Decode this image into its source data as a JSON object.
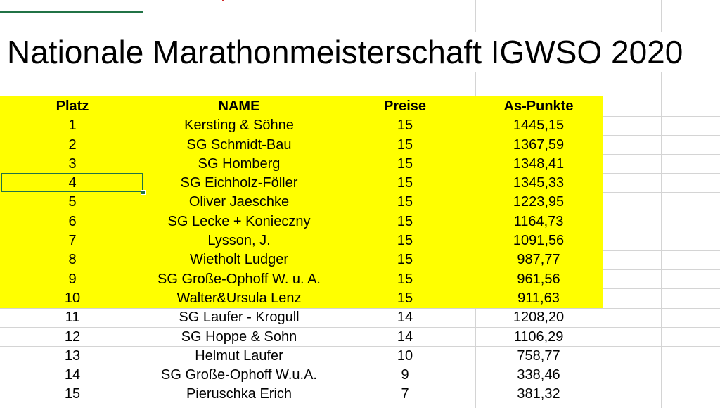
{
  "sheet": {
    "title": "Nationale Marathonmeisterschaft IGWSO 2020",
    "headers": {
      "platz": "Platz",
      "name": "NAME",
      "preise": "Preise",
      "punkte": "As-Punkte"
    },
    "rows": [
      {
        "platz": "1",
        "name": "Kersting & Söhne",
        "preise": "15",
        "punkte": "1445,15"
      },
      {
        "platz": "2",
        "name": "SG Schmidt-Bau",
        "preise": "15",
        "punkte": "1367,59"
      },
      {
        "platz": "3",
        "name": "SG Homberg",
        "preise": "15",
        "punkte": "1348,41"
      },
      {
        "platz": "4",
        "name": "SG Eichholz-Föller",
        "preise": "15",
        "punkte": "1345,33"
      },
      {
        "platz": "5",
        "name": "Oliver Jaeschke",
        "preise": "15",
        "punkte": "1223,95"
      },
      {
        "platz": "6",
        "name": "SG Lecke + Konieczny",
        "preise": "15",
        "punkte": "1164,73"
      },
      {
        "platz": "7",
        "name": "Lysson, J.",
        "preise": "15",
        "punkte": "1091,56"
      },
      {
        "platz": "8",
        "name": "Wietholt Ludger",
        "preise": "15",
        "punkte": "987,77"
      },
      {
        "platz": "9",
        "name": "SG Große-Ophoff W. u. A.",
        "preise": "15",
        "punkte": "961,56"
      },
      {
        "platz": "10",
        "name": "Walter&Ursula Lenz",
        "preise": "15",
        "punkte": "911,63"
      },
      {
        "platz": "11",
        "name": "SG Laufer - Krogull",
        "preise": "14",
        "punkte": "1208,20"
      },
      {
        "platz": "12",
        "name": "SG Hoppe & Sohn",
        "preise": "14",
        "punkte": "1106,29"
      },
      {
        "platz": "13",
        "name": "Helmut Laufer",
        "preise": "10",
        "punkte": "758,77"
      },
      {
        "platz": "14",
        "name": "SG Große-Ophoff W.u.A.",
        "preise": "9",
        "punkte": "338,46"
      },
      {
        "platz": "15",
        "name": "Pieruschka Erich",
        "preise": "7",
        "punkte": "381,32"
      }
    ]
  },
  "colors": {
    "highlight": "#ffff00",
    "selection": "#217346",
    "gridline": "#d4d4d4"
  }
}
